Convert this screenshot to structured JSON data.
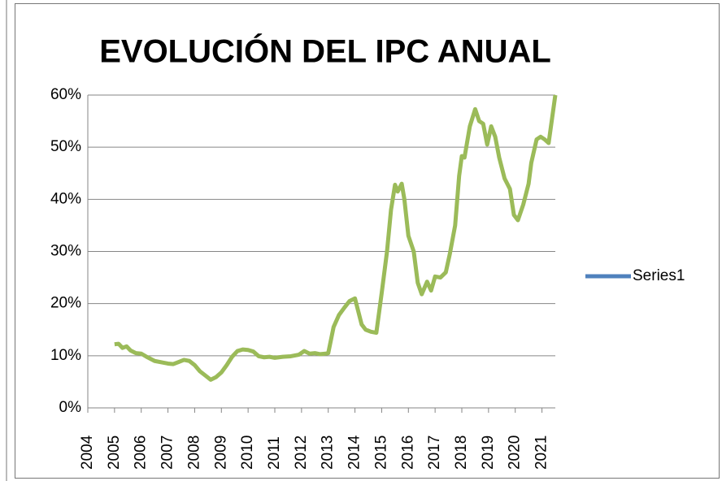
{
  "chart_data": {
    "type": "line",
    "title": "EVOLUCIÓN DEL IPC ANUAL",
    "x": [
      2005.0,
      2005.15,
      2005.3,
      2005.45,
      2005.6,
      2005.8,
      2006.0,
      2006.2,
      2006.5,
      2006.8,
      2007.0,
      2007.2,
      2007.4,
      2007.6,
      2007.8,
      2008.0,
      2008.2,
      2008.4,
      2008.6,
      2008.8,
      2009.0,
      2009.2,
      2009.4,
      2009.6,
      2009.8,
      2010.0,
      2010.2,
      2010.4,
      2010.6,
      2010.8,
      2011.0,
      2011.3,
      2011.6,
      2011.9,
      2012.1,
      2012.3,
      2012.5,
      2012.7,
      2012.9,
      2013.0,
      2013.2,
      2013.4,
      2013.6,
      2013.8,
      2014.0,
      2014.1,
      2014.25,
      2014.4,
      2014.6,
      2014.8,
      2015.0,
      2015.2,
      2015.35,
      2015.5,
      2015.6,
      2015.75,
      2015.85,
      2016.0,
      2016.2,
      2016.35,
      2016.5,
      2016.7,
      2016.85,
      2017.0,
      2017.2,
      2017.4,
      2017.55,
      2017.75,
      2017.9,
      2018.0,
      2018.1,
      2018.3,
      2018.5,
      2018.65,
      2018.8,
      2018.95,
      2019.1,
      2019.25,
      2019.4,
      2019.6,
      2019.8,
      2019.95,
      2020.1,
      2020.3,
      2020.5,
      2020.6,
      2020.8,
      2020.95,
      2021.1,
      2021.25,
      2021.5
    ],
    "series": [
      {
        "name": "Series1",
        "color": "#9bbb59",
        "legend_color": "#4f81bd",
        "values": [
          12.2,
          12.3,
          11.5,
          11.8,
          11.0,
          10.5,
          10.4,
          9.8,
          9.0,
          8.7,
          8.5,
          8.4,
          8.8,
          9.2,
          9.0,
          8.2,
          7.0,
          6.2,
          5.4,
          5.9,
          6.8,
          8.2,
          9.8,
          10.9,
          11.2,
          11.1,
          10.8,
          9.9,
          9.7,
          9.8,
          9.6,
          9.8,
          9.9,
          10.2,
          10.9,
          10.4,
          10.5,
          10.3,
          10.4,
          10.5,
          15.5,
          17.8,
          19.2,
          20.5,
          21.0,
          19.0,
          16.0,
          15.0,
          14.6,
          14.4,
          22.0,
          30.0,
          38.0,
          42.8,
          41.5,
          43.0,
          40.0,
          33.0,
          30.0,
          24.0,
          21.8,
          24.2,
          22.5,
          25.2,
          25.0,
          26.0,
          29.5,
          35.0,
          44.5,
          48.3,
          48.0,
          54.0,
          57.3,
          55.0,
          54.5,
          50.5,
          54.0,
          52.0,
          48.0,
          44.0,
          42.0,
          37.0,
          36.0,
          39.0,
          43.0,
          47.0,
          51.5,
          52.0,
          51.5,
          50.8,
          60.0
        ]
      }
    ],
    "xlim": [
      2004,
      2021.5
    ],
    "xticks": [
      2004,
      2005,
      2006,
      2007,
      2008,
      2009,
      2010,
      2011,
      2012,
      2013,
      2014,
      2015,
      2016,
      2017,
      2018,
      2019,
      2020,
      2021
    ],
    "ylim": [
      0,
      60
    ],
    "yticks": [
      {
        "value": 0,
        "label": "0%"
      },
      {
        "value": 10,
        "label": "10%"
      },
      {
        "value": 20,
        "label": "20%"
      },
      {
        "value": 30,
        "label": "30%"
      },
      {
        "value": 40,
        "label": "40%"
      },
      {
        "value": 50,
        "label": "50%"
      },
      {
        "value": 60,
        "label": "60%"
      }
    ],
    "grid": true,
    "legend": "right"
  }
}
